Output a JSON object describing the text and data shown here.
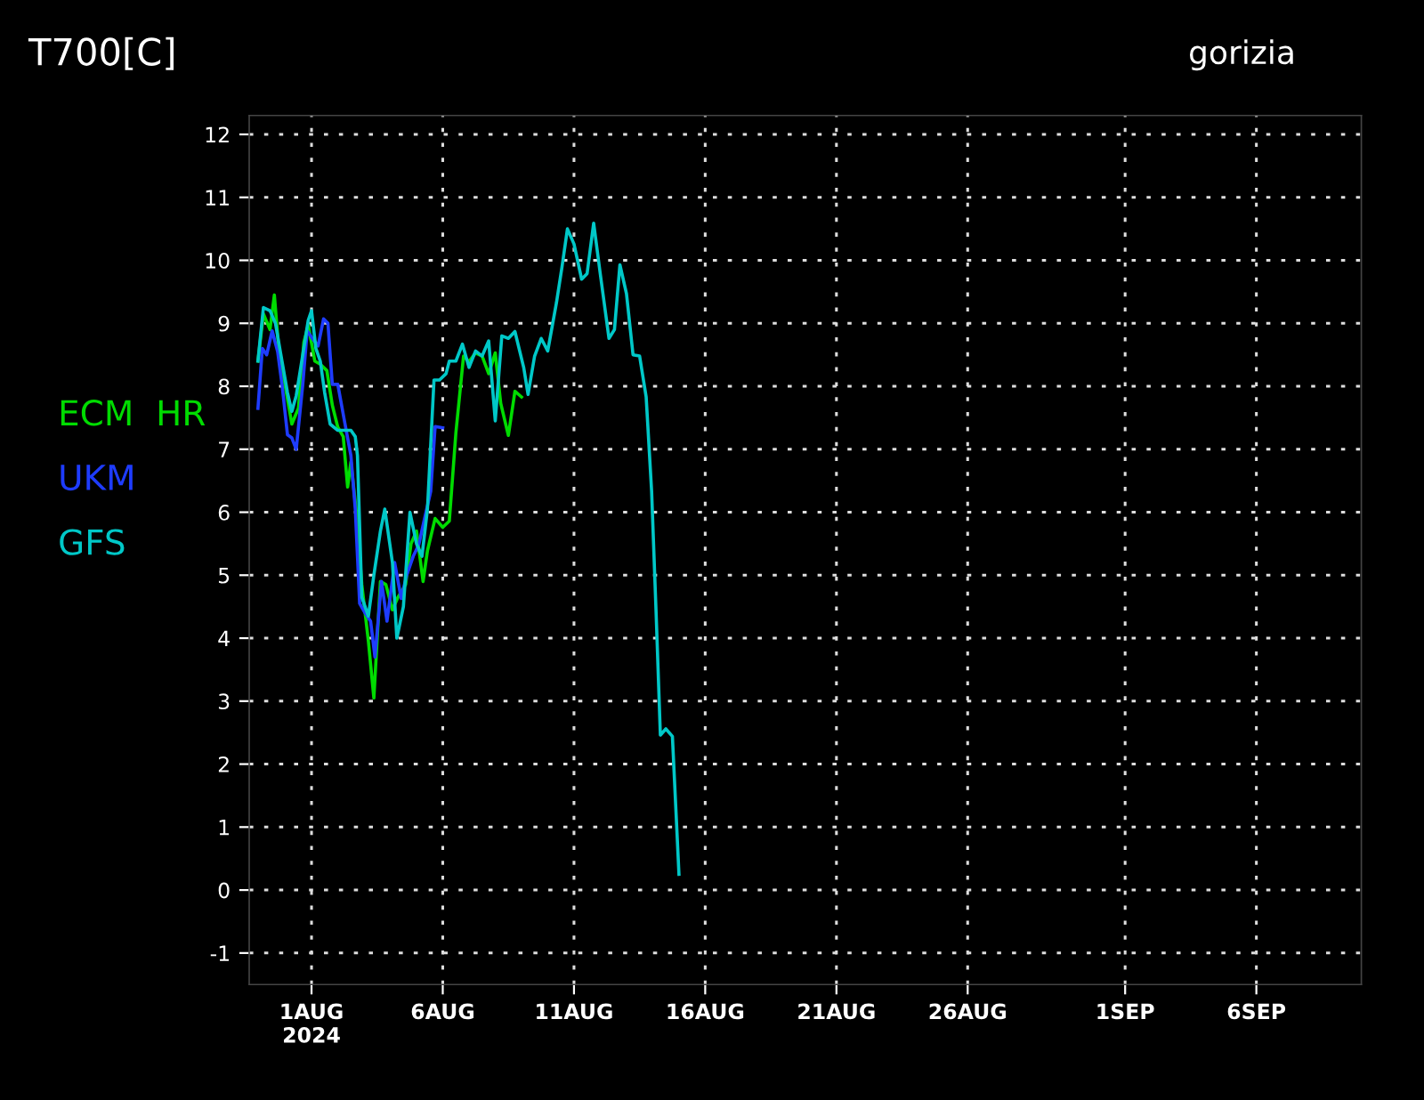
{
  "chart_data": {
    "type": "line",
    "title": "T700[C]",
    "subtitle": "gorizia",
    "xlim": [
      "2024-07-29T15:00",
      "2024-09-10T00:00"
    ],
    "ylim": [
      -1.5,
      12.3
    ],
    "xticks": [
      {
        "value": "2024-08-01",
        "label": "1AUG\n2024"
      },
      {
        "value": "2024-08-06",
        "label": "6AUG"
      },
      {
        "value": "2024-08-11",
        "label": "11AUG"
      },
      {
        "value": "2024-08-16",
        "label": "16AUG"
      },
      {
        "value": "2024-08-21",
        "label": "21AUG"
      },
      {
        "value": "2024-08-26",
        "label": "26AUG"
      },
      {
        "value": "2024-09-01",
        "label": "1SEP"
      },
      {
        "value": "2024-09-06",
        "label": "6SEP"
      }
    ],
    "yticks": [
      -1,
      0,
      1,
      2,
      3,
      4,
      5,
      6,
      7,
      8,
      9,
      10,
      11,
      12
    ],
    "grid": true,
    "legend": "left",
    "marker": "none",
    "line_style": "solid",
    "series": [
      {
        "name": "ECM  HR",
        "color": "#00dc00",
        "x": [
          "2024-07-29T23:00",
          "2024-07-30T04:00",
          "2024-07-30T10:00",
          "2024-07-30T14:00",
          "2024-07-30T18:00",
          "2024-07-31T00:00",
          "2024-07-31T06:00",
          "2024-07-31T12:00",
          "2024-07-31T17:00",
          "2024-07-31T21:00",
          "2024-08-01T03:00",
          "2024-08-01T08:00",
          "2024-08-01T14:00",
          "2024-08-01T19:00",
          "2024-08-02T00:00",
          "2024-08-02T05:00",
          "2024-08-02T09:00",
          "2024-08-02T12:00",
          "2024-08-02T17:00",
          "2024-08-02T22:00",
          "2024-08-03T04:00",
          "2024-08-03T09:00",
          "2024-08-03T15:00",
          "2024-08-03T20:00",
          "2024-08-04T02:00",
          "2024-08-04T07:00",
          "2024-08-04T14:00",
          "2024-08-04T19:00",
          "2024-08-05T00:00",
          "2024-08-05T06:00",
          "2024-08-05T10:00",
          "2024-08-05T17:00",
          "2024-08-06T00:00",
          "2024-08-06T06:00",
          "2024-08-06T12:00",
          "2024-08-06T19:00",
          "2024-08-07T00:00",
          "2024-08-07T06:00",
          "2024-08-07T12:00",
          "2024-08-07T18:00",
          "2024-08-08T00:00",
          "2024-08-08T05:00",
          "2024-08-08T12:00",
          "2024-08-08T18:00",
          "2024-08-09T00:00"
        ],
        "values": [
          8.4,
          9.15,
          8.9,
          9.45,
          8.6,
          8.0,
          7.4,
          7.65,
          8.7,
          8.97,
          8.4,
          8.35,
          8.25,
          7.7,
          7.35,
          7.2,
          6.4,
          6.8,
          6.0,
          4.85,
          3.95,
          3.05,
          4.9,
          4.85,
          4.45,
          4.65,
          4.85,
          5.5,
          5.7,
          4.9,
          5.39,
          5.9,
          5.76,
          5.86,
          7.26,
          8.48,
          8.39,
          8.53,
          8.48,
          8.2,
          8.53,
          7.73,
          7.22,
          7.92,
          7.83
        ]
      },
      {
        "name": "UKM",
        "color": "#1e3cff",
        "x": [
          "2024-07-29T23:00",
          "2024-07-30T03:00",
          "2024-07-30T07:00",
          "2024-07-30T12:00",
          "2024-07-30T17:00",
          "2024-07-30T21:00",
          "2024-07-31T02:00",
          "2024-07-31T06:00",
          "2024-07-31T10:00",
          "2024-07-31T16:00",
          "2024-07-31T20:00",
          "2024-08-01T00:00",
          "2024-08-01T06:00",
          "2024-08-01T11:00",
          "2024-08-01T15:00",
          "2024-08-01T19:00",
          "2024-08-02T00:00",
          "2024-08-02T06:00",
          "2024-08-02T12:00",
          "2024-08-02T16:00",
          "2024-08-02T20:00",
          "2024-08-03T01:00",
          "2024-08-03T06:00",
          "2024-08-03T10:00",
          "2024-08-03T16:00",
          "2024-08-03T21:00",
          "2024-08-04T04:00",
          "2024-08-04T10:00",
          "2024-08-04T15:00",
          "2024-08-04T21:00",
          "2024-08-05T02:00",
          "2024-08-05T08:00",
          "2024-08-05T13:00",
          "2024-08-05T17:00",
          "2024-08-06T00:00"
        ],
        "values": [
          7.65,
          8.6,
          8.5,
          8.88,
          8.55,
          8.03,
          7.23,
          7.18,
          7.0,
          8.03,
          8.88,
          8.78,
          8.64,
          9.07,
          9.0,
          8.03,
          8.03,
          7.46,
          6.9,
          6.05,
          4.55,
          4.4,
          4.27,
          3.7,
          4.9,
          4.27,
          5.2,
          4.63,
          5.0,
          5.3,
          5.48,
          5.95,
          6.33,
          7.36,
          7.34
        ]
      },
      {
        "name": "GFS",
        "color": "#00c8c8",
        "x": [
          "2024-07-29T23:00",
          "2024-07-30T04:00",
          "2024-07-30T10:00",
          "2024-07-30T15:00",
          "2024-07-30T21:00",
          "2024-07-31T02:00",
          "2024-07-31T06:00",
          "2024-07-31T10:00",
          "2024-07-31T16:00",
          "2024-07-31T21:00",
          "2024-08-01T00:00",
          "2024-08-01T04:00",
          "2024-08-01T08:00",
          "2024-08-01T12:00",
          "2024-08-01T17:00",
          "2024-08-02T00:00",
          "2024-08-02T12:00",
          "2024-08-02T16:00",
          "2024-08-02T18:00",
          "2024-08-02T22:00",
          "2024-08-03T04:00",
          "2024-08-03T09:00",
          "2024-08-03T15:00",
          "2024-08-03T19:00",
          "2024-08-04T02:00",
          "2024-08-04T06:00",
          "2024-08-04T12:00",
          "2024-08-04T18:00",
          "2024-08-05T00:00",
          "2024-08-05T05:00",
          "2024-08-05T10:00",
          "2024-08-05T16:00",
          "2024-08-05T21:00",
          "2024-08-06T03:00",
          "2024-08-06T06:00",
          "2024-08-06T12:00",
          "2024-08-06T18:00",
          "2024-08-07T00:00",
          "2024-08-07T06:00",
          "2024-08-07T12:00",
          "2024-08-07T18:00",
          "2024-08-08T00:00",
          "2024-08-08T06:00",
          "2024-08-08T12:00",
          "2024-08-08T18:00",
          "2024-08-09T02:00",
          "2024-08-09T06:00",
          "2024-08-09T12:00",
          "2024-08-09T18:00",
          "2024-08-10T00:00",
          "2024-08-10T08:00",
          "2024-08-10T13:00",
          "2024-08-10T18:00",
          "2024-08-11T00:00",
          "2024-08-11T07:00",
          "2024-08-11T12:00",
          "2024-08-11T18:00",
          "2024-08-12T00:00",
          "2024-08-12T08:00",
          "2024-08-12T13:00",
          "2024-08-12T18:00",
          "2024-08-13T00:00",
          "2024-08-13T06:00",
          "2024-08-13T12:00",
          "2024-08-13T18:00",
          "2024-08-13T23:00",
          "2024-08-14T03:00",
          "2024-08-14T07:00",
          "2024-08-14T12:00",
          "2024-08-14T18:00",
          "2024-08-15T00:00"
        ],
        "values": [
          8.4,
          9.25,
          9.2,
          9.0,
          8.4,
          7.9,
          7.6,
          7.85,
          8.5,
          9.05,
          9.2,
          8.6,
          8.4,
          7.9,
          7.4,
          7.3,
          7.3,
          7.2,
          6.9,
          4.65,
          4.35,
          5.0,
          5.7,
          6.05,
          5.2,
          4.0,
          4.5,
          6.0,
          5.5,
          5.3,
          6.05,
          8.1,
          8.1,
          8.2,
          8.4,
          8.4,
          8.67,
          8.3,
          8.56,
          8.48,
          8.72,
          7.45,
          8.8,
          8.76,
          8.87,
          8.3,
          7.87,
          8.48,
          8.76,
          8.56,
          9.33,
          9.89,
          10.5,
          10.26,
          9.7,
          9.79,
          10.59,
          9.79,
          8.76,
          8.9,
          9.93,
          9.47,
          8.5,
          8.48,
          7.83,
          6.33,
          4.45,
          2.46,
          2.56,
          2.44,
          0.25
        ]
      }
    ]
  }
}
